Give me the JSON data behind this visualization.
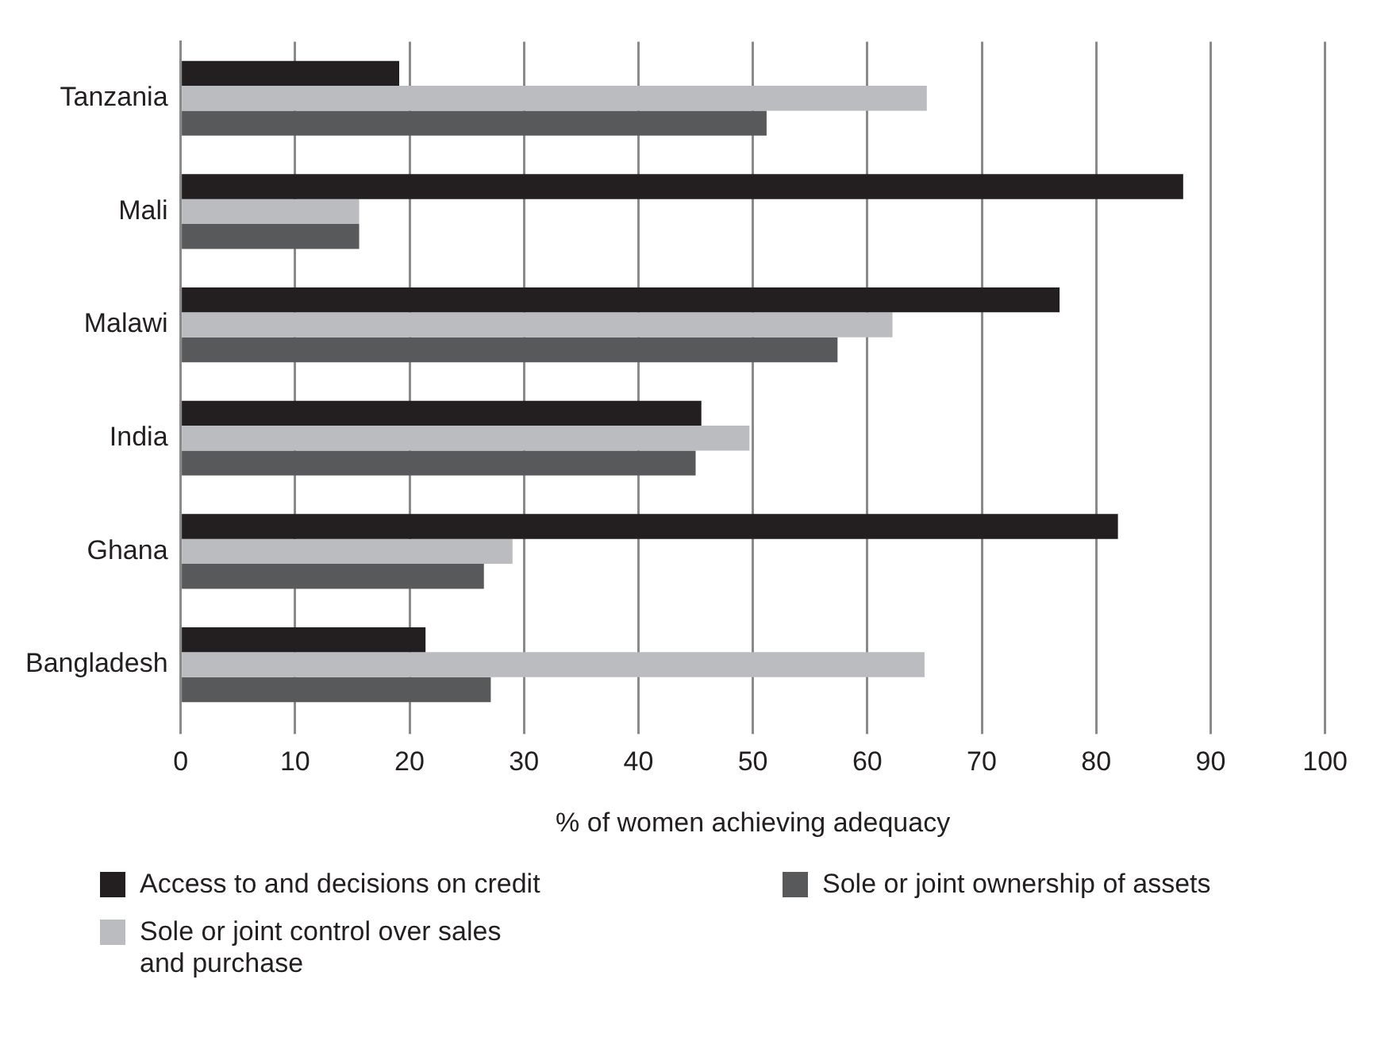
{
  "chart_data": {
    "type": "bar",
    "orientation": "horizontal",
    "xlabel": "% of women achieving adequacy",
    "categories": [
      "Tanzania",
      "Mali",
      "Malawi",
      "India",
      "Ghana",
      "Bangladesh"
    ],
    "series": [
      {
        "name": "Access to and decisions on credit",
        "color": "#231f20",
        "values": [
          19.1,
          87.6,
          76.8,
          45.5,
          81.9,
          21.4
        ]
      },
      {
        "name": "Sole or joint control over sales and purchase",
        "color": "#bbbcbf",
        "values": [
          65.2,
          15.6,
          62.2,
          49.7,
          29.0,
          65.0
        ]
      },
      {
        "name": "Sole or joint ownership of assets",
        "color": "#58595b",
        "values": [
          51.2,
          15.6,
          57.4,
          45.0,
          26.5,
          27.1
        ]
      }
    ],
    "xlim": [
      0,
      100
    ],
    "xticks": [
      0,
      10,
      20,
      30,
      40,
      50,
      60,
      70,
      80,
      90,
      100
    ],
    "grid": "x",
    "legend": "bottom"
  }
}
